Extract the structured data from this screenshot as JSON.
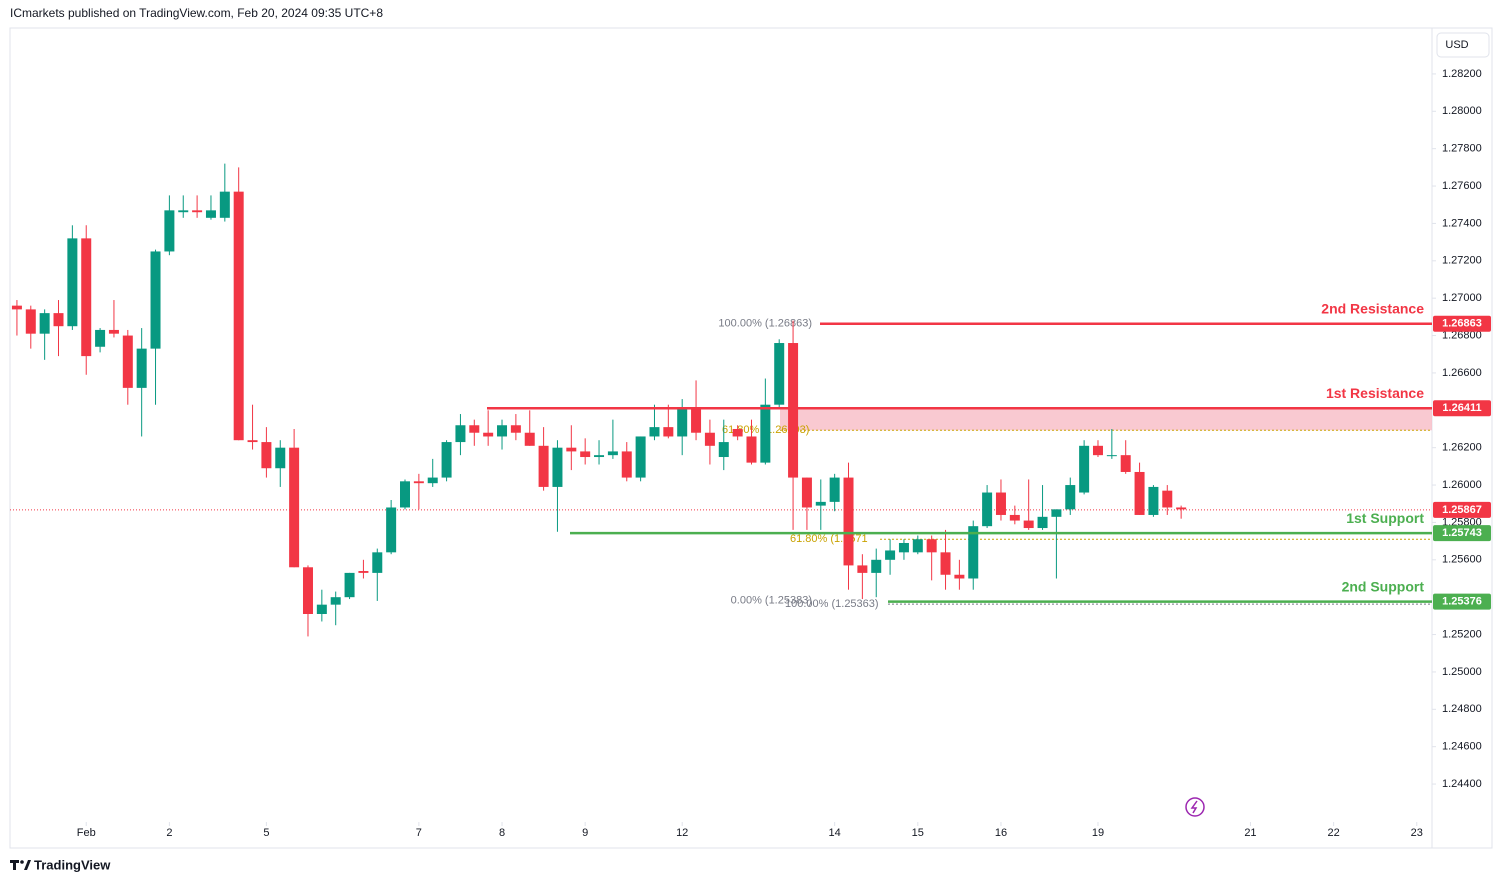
{
  "header": {
    "title": "ICmarkets published on TradingView.com, Feb 20, 2024 09:35 UTC+8"
  },
  "toolbar": {
    "currency": "USD"
  },
  "footer": {
    "brand": "TradingView"
  },
  "chart_data": {
    "type": "candlestick",
    "x": [
      0,
      1,
      2,
      3,
      4,
      5,
      6,
      7,
      8,
      9,
      10,
      11,
      12,
      13,
      14,
      15,
      16,
      17,
      18,
      19,
      20,
      21,
      22,
      23,
      24,
      25,
      26,
      27,
      28,
      29,
      30,
      31,
      32,
      33,
      34,
      35,
      36,
      37,
      38,
      39,
      40,
      41,
      42,
      43,
      44,
      45,
      46,
      47,
      48,
      49,
      50,
      51,
      52,
      53,
      54,
      55,
      56,
      57,
      58,
      59,
      60,
      61,
      62,
      63,
      64,
      65,
      66,
      67,
      68,
      69,
      70,
      71,
      72,
      73,
      74,
      75,
      76,
      77,
      78,
      79,
      80,
      81,
      82,
      83,
      84
    ],
    "open": [
      1.2696,
      1.2694,
      1.2681,
      1.2692,
      1.2685,
      1.2732,
      1.2674,
      1.2683,
      1.268,
      1.2652,
      1.2673,
      1.2725,
      1.2746,
      1.2747,
      1.2743,
      1.2743,
      1.2757,
      1.2624,
      1.2623,
      1.2609,
      1.262,
      1.2556,
      1.2531,
      1.2536,
      1.254,
      1.2554,
      1.2553,
      1.2564,
      1.2588,
      1.2602,
      1.2601,
      1.2604,
      1.2623,
      1.2632,
      1.2628,
      1.2626,
      1.2632,
      1.2628,
      1.2621,
      1.2599,
      1.262,
      1.2618,
      1.2615,
      1.2616,
      1.2618,
      1.2604,
      1.2626,
      1.2631,
      1.2626,
      1.2641,
      1.2628,
      1.2615,
      1.263,
      1.2626,
      1.2612,
      1.2643,
      1.2676,
      1.2604,
      1.2589,
      1.2591,
      1.2604,
      1.2557,
      1.2553,
      1.256,
      1.2564,
      1.2564,
      1.2571,
      1.2564,
      1.2552,
      1.255,
      1.2578,
      1.2596,
      1.2584,
      1.2581,
      1.2577,
      1.2583,
      1.2587,
      1.2596,
      1.2621,
      1.2616,
      1.2616,
      1.2607,
      1.2584,
      1.2597,
      1.2588
    ],
    "high": [
      1.2699,
      1.2696,
      1.2694,
      1.2699,
      1.2739,
      1.2739,
      1.2684,
      1.2699,
      1.2683,
      1.2684,
      1.2726,
      1.2755,
      1.2755,
      1.2755,
      1.2755,
      1.2772,
      1.277,
      1.2643,
      1.2631,
      1.2624,
      1.263,
      1.2557,
      1.2544,
      1.2543,
      1.2553,
      1.256,
      1.2566,
      1.2592,
      1.2603,
      1.2606,
      1.2614,
      1.2624,
      1.2638,
      1.2635,
      1.264,
      1.2635,
      1.2638,
      1.264,
      1.2631,
      1.2624,
      1.2632,
      1.2625,
      1.2624,
      1.2635,
      1.2623,
      1.2626,
      1.2643,
      1.2643,
      1.2646,
      1.2656,
      1.2635,
      1.2635,
      1.2632,
      1.2635,
      1.2657,
      1.2678,
      1.2688,
      1.2604,
      1.2603,
      1.2606,
      1.2612,
      1.2563,
      1.2566,
      1.2571,
      1.2571,
      1.2573,
      1.2573,
      1.2576,
      1.256,
      1.2581,
      1.26,
      1.2603,
      1.2589,
      1.2603,
      1.26,
      1.2587,
      1.2604,
      1.2624,
      1.2624,
      1.263,
      1.2624,
      1.2612,
      1.26,
      1.26,
      1.2589
    ],
    "low": [
      1.268,
      1.2673,
      1.2667,
      1.2669,
      1.2683,
      1.2659,
      1.2671,
      1.2679,
      1.2643,
      1.2626,
      1.2643,
      1.2723,
      1.2743,
      1.2743,
      1.2742,
      1.2741,
      1.2624,
      1.2619,
      1.2604,
      1.2599,
      1.2556,
      1.2519,
      1.2527,
      1.2525,
      1.2539,
      1.255,
      1.2538,
      1.2563,
      1.2587,
      1.2587,
      1.2599,
      1.2602,
      1.2616,
      1.2621,
      1.2621,
      1.2619,
      1.2624,
      1.2621,
      1.2597,
      1.2575,
      1.2608,
      1.2611,
      1.2611,
      1.2614,
      1.2602,
      1.2602,
      1.2624,
      1.2625,
      1.2616,
      1.2624,
      1.2611,
      1.2608,
      1.2624,
      1.2611,
      1.2611,
      1.2641,
      1.2576,
      1.2576,
      1.2576,
      1.2586,
      1.2544,
      1.2539,
      1.254,
      1.2552,
      1.256,
      1.2563,
      1.2549,
      1.2544,
      1.2544,
      1.2544,
      1.2577,
      1.2581,
      1.2579,
      1.2576,
      1.2576,
      1.255,
      1.2584,
      1.2595,
      1.2615,
      1.2614,
      1.2606,
      1.2584,
      1.2583,
      1.2584,
      1.2582
    ],
    "close": [
      1.2694,
      1.2681,
      1.2692,
      1.2685,
      1.2732,
      1.2669,
      1.2683,
      1.2681,
      1.2652,
      1.2673,
      1.2725,
      1.2747,
      1.2747,
      1.2746,
      1.2747,
      1.2757,
      1.2624,
      1.2623,
      1.2609,
      1.262,
      1.2556,
      1.2531,
      1.2536,
      1.254,
      1.2553,
      1.2553,
      1.2564,
      1.2588,
      1.2602,
      1.2601,
      1.2604,
      1.2623,
      1.2632,
      1.2628,
      1.2626,
      1.2632,
      1.2628,
      1.2621,
      1.2599,
      1.262,
      1.2618,
      1.2615,
      1.2616,
      1.2618,
      1.2604,
      1.2626,
      1.2631,
      1.2626,
      1.2641,
      1.2628,
      1.2621,
      1.2623,
      1.2626,
      1.2612,
      1.2643,
      1.2676,
      1.2604,
      1.2588,
      1.2591,
      1.2604,
      1.2557,
      1.2553,
      1.256,
      1.2565,
      1.2569,
      1.2571,
      1.2564,
      1.2552,
      1.255,
      1.2578,
      1.2596,
      1.2584,
      1.2581,
      1.2577,
      1.2583,
      1.2587,
      1.26,
      1.2621,
      1.2616,
      1.2616,
      1.2607,
      1.2584,
      1.2599,
      1.2588,
      1.2587
    ],
    "up_color": "#089981",
    "down_color": "#f23645",
    "xlim": [
      -0.5,
      102.1
    ],
    "xticks": [
      {
        "value": 5,
        "label": "Feb"
      },
      {
        "value": 11,
        "label": "2"
      },
      {
        "value": 18,
        "label": "5"
      },
      {
        "value": 29,
        "label": "7"
      },
      {
        "value": 35,
        "label": "8"
      },
      {
        "value": 41,
        "label": "9"
      },
      {
        "value": 48,
        "label": "12"
      },
      {
        "value": 59,
        "label": "14"
      },
      {
        "value": 65,
        "label": "15"
      },
      {
        "value": 71,
        "label": "16"
      },
      {
        "value": 78,
        "label": "19"
      },
      {
        "value": 89,
        "label": "21"
      },
      {
        "value": 95,
        "label": "22"
      },
      {
        "value": 101,
        "label": "23"
      }
    ],
    "ylim": [
      1.24197,
      1.28435
    ],
    "yticks": [
      {
        "value": 1.282,
        "label": "1.28200"
      },
      {
        "value": 1.28,
        "label": "1.28000"
      },
      {
        "value": 1.278,
        "label": "1.27800"
      },
      {
        "value": 1.276,
        "label": "1.27600"
      },
      {
        "value": 1.274,
        "label": "1.27400"
      },
      {
        "value": 1.272,
        "label": "1.27200"
      },
      {
        "value": 1.27,
        "label": "1.27000"
      },
      {
        "value": 1.268,
        "label": "1.26800"
      },
      {
        "value": 1.266,
        "label": "1.26600"
      },
      {
        "value": 1.262,
        "label": "1.26200"
      },
      {
        "value": 1.26,
        "label": "1.26000"
      },
      {
        "value": 1.258,
        "label": "1.25800"
      },
      {
        "value": 1.256,
        "label": "1.25600"
      },
      {
        "value": 1.252,
        "label": "1.25200"
      },
      {
        "value": 1.25,
        "label": "1.25000"
      },
      {
        "value": 1.248,
        "label": "1.24800"
      },
      {
        "value": 1.246,
        "label": "1.24600"
      },
      {
        "value": 1.244,
        "label": "1.24400"
      }
    ],
    "last_price": {
      "value": 1.25867,
      "label": "1.25867",
      "color": "#f23645"
    },
    "levels": [
      {
        "name": "2nd Resistance",
        "value": 1.26863,
        "label": "1.26863",
        "color": "#f23645"
      },
      {
        "name": "1st Resistance",
        "value": 1.26411,
        "label": "1.26411",
        "color": "#f23645"
      },
      {
        "name": "1st Support",
        "value": 1.25743,
        "label": "1.25743",
        "color": "#4caf50"
      },
      {
        "name": "2nd Support",
        "value": 1.25376,
        "label": "1.25376",
        "color": "#4caf50"
      }
    ],
    "zone": {
      "top": 1.26411,
      "bottom": 1.26293,
      "color": "#f8bbc5"
    },
    "fib_labels": [
      {
        "text": "100.00% (1.26863)",
        "value": 1.26863,
        "color": "#787b86"
      },
      {
        "text": "61.80% (1.26293)",
        "value": 1.26293,
        "color": "#c9a200"
      },
      {
        "text": "0.00% (1.25383)",
        "value": 1.25383,
        "color": "#787b86"
      },
      {
        "text": "100.00% (1.25363)",
        "value": 1.25363,
        "color": "#787b86"
      },
      {
        "text": "61.80% (1.2571",
        "value": 1.2571,
        "color": "#c9a200"
      }
    ]
  }
}
